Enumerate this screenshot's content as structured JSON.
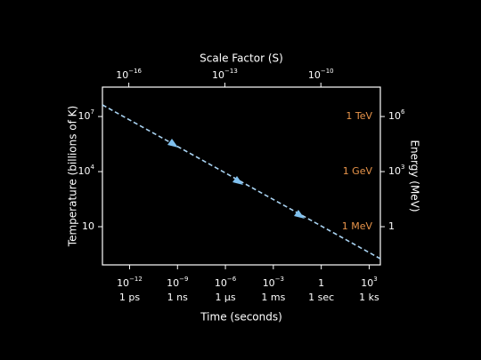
{
  "chart_data": {
    "type": "line",
    "x2label": "Scale Factor (S)",
    "xlabel": "Time (seconds)",
    "ylabel": "Temperature (billions of K)",
    "y2label": "Energy (MeV)",
    "xscale": "log",
    "yscale": "log",
    "xlim": [
      2e-14,
      5000
    ],
    "xticks": [
      {
        "value": 1e-12,
        "label": "10",
        "exponent": "−12"
      },
      {
        "value": 1e-09,
        "label": "10",
        "exponent": "−9"
      },
      {
        "value": 1e-06,
        "label": "10",
        "exponent": "−6"
      },
      {
        "value": 0.001,
        "label": "10",
        "exponent": "−3"
      },
      1,
      {
        "value": 1000,
        "label": "10",
        "exponent": "3"
      }
    ],
    "xtick_units": [
      "1 ps",
      "1 ns",
      "1 μs",
      "1 ms",
      "1 sec",
      "1 ks"
    ],
    "x2lim": [
      1.5e-17,
      7.2e-09
    ],
    "x2ticks": [
      {
        "value": 1e-16,
        "label": "10",
        "exponent": "−16"
      },
      {
        "value": 1e-13,
        "label": "10",
        "exponent": "−13"
      },
      {
        "value": 1e-10,
        "label": "10",
        "exponent": "−10"
      }
    ],
    "ylim": [
      0.083,
      400000000.0
    ],
    "yticks": [
      {
        "value": 10000000,
        "label": "10",
        "exponent": "7"
      },
      {
        "value": 10000,
        "label": "10",
        "exponent": "4"
      },
      10
    ],
    "y2lim": [
      0.0083,
      40000000.0
    ],
    "y2ticks": [
      {
        "value": 1000000,
        "label": "10",
        "exponent": "6"
      },
      {
        "value": 1000,
        "label": "10",
        "exponent": "3"
      },
      1
    ],
    "annotations": [
      {
        "text": "1 TeV",
        "y": 1000000,
        "axis": "y2"
      },
      {
        "text": "1 GeV",
        "y": 1000,
        "axis": "y2"
      },
      {
        "text": "1 MeV",
        "y": 1,
        "axis": "y2"
      }
    ],
    "annotation_color": "#e8944a",
    "series": [
      {
        "color": "#a9d3f2",
        "dashed": true,
        "x": [
          2e-14,
          5000
        ],
        "values": [
          43000000,
          0.18
        ]
      }
    ]
  }
}
